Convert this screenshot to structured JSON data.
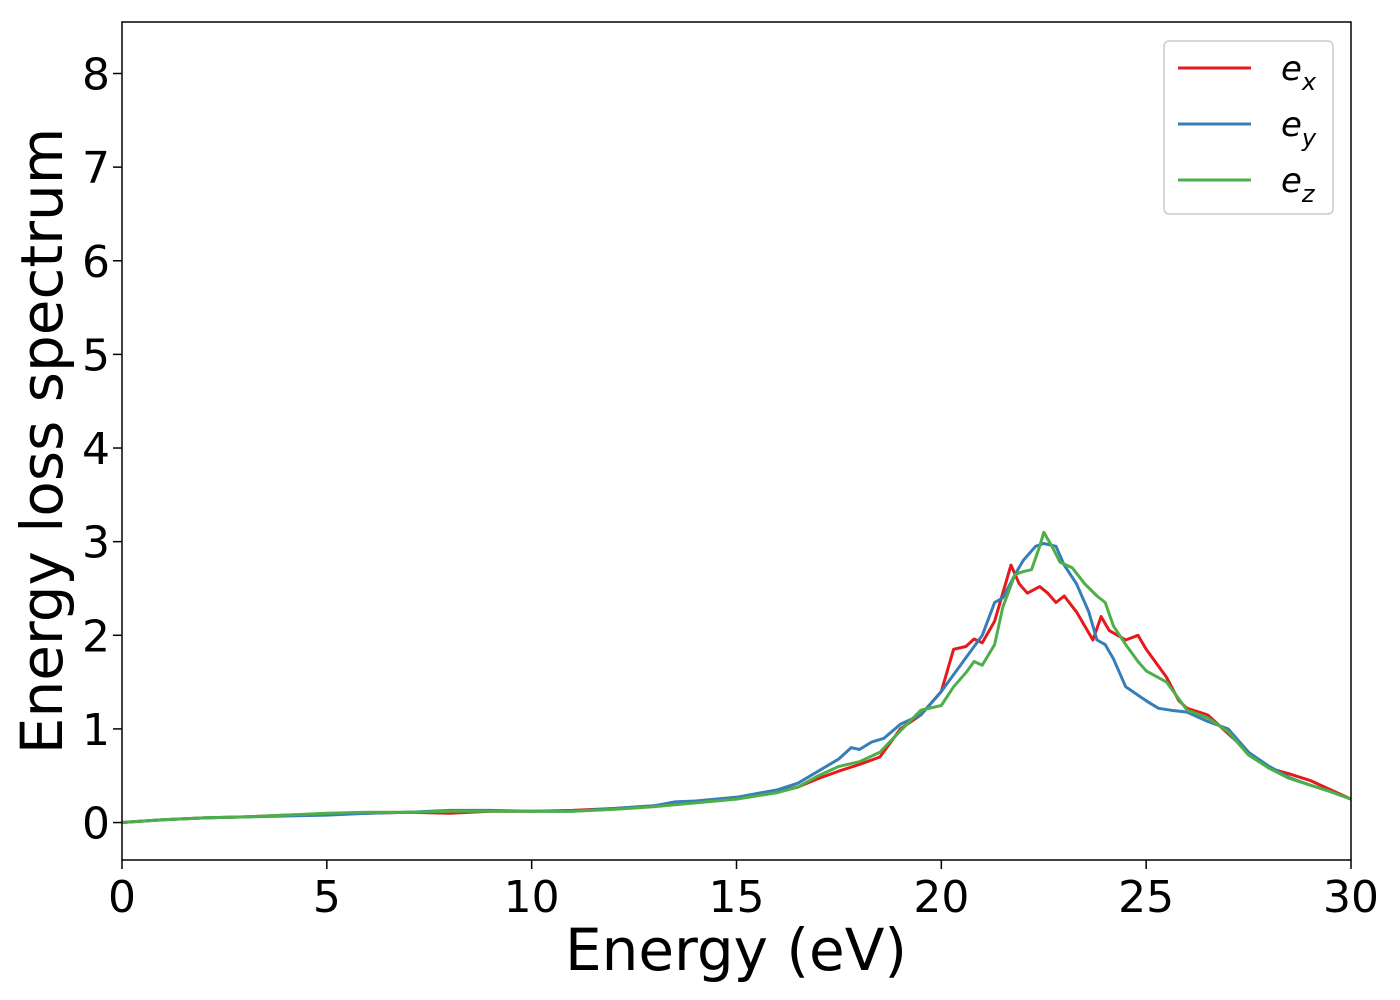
{
  "chart_data": {
    "type": "line",
    "title": "",
    "xlabel": "Energy (eV)",
    "ylabel": "Energy loss spectrum",
    "xlim": [
      0,
      30
    ],
    "ylim": [
      -0.4,
      8.55
    ],
    "xticks": [
      0,
      5,
      10,
      15,
      20,
      25,
      30
    ],
    "yticks": [
      0,
      1,
      2,
      3,
      4,
      5,
      6,
      7,
      8
    ],
    "grid": false,
    "legend_position": "top-right",
    "series": [
      {
        "name": "e_x",
        "label_base": "e",
        "label_sub": "x",
        "color": "#e41a1c",
        "points": [
          [
            0,
            0
          ],
          [
            1,
            0.03
          ],
          [
            2,
            0.05
          ],
          [
            3,
            0.06
          ],
          [
            4,
            0.08
          ],
          [
            5,
            0.09
          ],
          [
            6,
            0.1
          ],
          [
            7,
            0.11
          ],
          [
            8,
            0.1
          ],
          [
            9,
            0.12
          ],
          [
            10,
            0.12
          ],
          [
            11,
            0.13
          ],
          [
            12,
            0.15
          ],
          [
            13,
            0.18
          ],
          [
            14,
            0.22
          ],
          [
            15,
            0.27
          ],
          [
            16,
            0.33
          ],
          [
            16.5,
            0.38
          ],
          [
            17,
            0.47
          ],
          [
            17.5,
            0.55
          ],
          [
            18,
            0.62
          ],
          [
            18.5,
            0.7
          ],
          [
            19,
            1.0
          ],
          [
            19.5,
            1.15
          ],
          [
            20,
            1.4
          ],
          [
            20.3,
            1.85
          ],
          [
            20.6,
            1.88
          ],
          [
            20.8,
            1.96
          ],
          [
            21,
            1.92
          ],
          [
            21.3,
            2.15
          ],
          [
            21.5,
            2.45
          ],
          [
            21.7,
            2.75
          ],
          [
            21.9,
            2.55
          ],
          [
            22.1,
            2.45
          ],
          [
            22.4,
            2.52
          ],
          [
            22.6,
            2.45
          ],
          [
            22.8,
            2.35
          ],
          [
            23,
            2.42
          ],
          [
            23.3,
            2.25
          ],
          [
            23.5,
            2.1
          ],
          [
            23.7,
            1.95
          ],
          [
            23.9,
            2.2
          ],
          [
            24.1,
            2.05
          ],
          [
            24.3,
            2.0
          ],
          [
            24.5,
            1.95
          ],
          [
            24.8,
            2.0
          ],
          [
            25,
            1.85
          ],
          [
            25.5,
            1.55
          ],
          [
            25.8,
            1.3
          ],
          [
            26,
            1.22
          ],
          [
            26.5,
            1.15
          ],
          [
            27,
            0.95
          ],
          [
            27.5,
            0.75
          ],
          [
            28,
            0.58
          ],
          [
            28.5,
            0.52
          ],
          [
            29,
            0.45
          ],
          [
            29.5,
            0.35
          ],
          [
            30,
            0.25
          ]
        ]
      },
      {
        "name": "e_y",
        "label_base": "e",
        "label_sub": "y",
        "color": "#377eb8",
        "points": [
          [
            0,
            0
          ],
          [
            1,
            0.03
          ],
          [
            2,
            0.05
          ],
          [
            3,
            0.06
          ],
          [
            4,
            0.07
          ],
          [
            5,
            0.08
          ],
          [
            6,
            0.1
          ],
          [
            7,
            0.11
          ],
          [
            8,
            0.13
          ],
          [
            9,
            0.13
          ],
          [
            10,
            0.12
          ],
          [
            11,
            0.12
          ],
          [
            12,
            0.15
          ],
          [
            13,
            0.18
          ],
          [
            13.5,
            0.22
          ],
          [
            14,
            0.23
          ],
          [
            15,
            0.27
          ],
          [
            16,
            0.35
          ],
          [
            16.5,
            0.42
          ],
          [
            17,
            0.55
          ],
          [
            17.5,
            0.68
          ],
          [
            17.8,
            0.8
          ],
          [
            18,
            0.78
          ],
          [
            18.3,
            0.86
          ],
          [
            18.6,
            0.9
          ],
          [
            19,
            1.05
          ],
          [
            19.5,
            1.15
          ],
          [
            20,
            1.4
          ],
          [
            20.5,
            1.7
          ],
          [
            21,
            2.0
          ],
          [
            21.3,
            2.35
          ],
          [
            21.5,
            2.4
          ],
          [
            21.8,
            2.65
          ],
          [
            22,
            2.8
          ],
          [
            22.3,
            2.95
          ],
          [
            22.5,
            2.98
          ],
          [
            22.8,
            2.95
          ],
          [
            23,
            2.75
          ],
          [
            23.3,
            2.55
          ],
          [
            23.6,
            2.25
          ],
          [
            23.8,
            1.95
          ],
          [
            24,
            1.9
          ],
          [
            24.2,
            1.75
          ],
          [
            24.5,
            1.45
          ],
          [
            25,
            1.3
          ],
          [
            25.3,
            1.22
          ],
          [
            25.6,
            1.2
          ],
          [
            26,
            1.18
          ],
          [
            26.5,
            1.08
          ],
          [
            27,
            1.0
          ],
          [
            27.5,
            0.75
          ],
          [
            28,
            0.6
          ],
          [
            28.5,
            0.48
          ],
          [
            29,
            0.4
          ],
          [
            29.5,
            0.33
          ],
          [
            30,
            0.25
          ]
        ]
      },
      {
        "name": "e_z",
        "label_base": "e",
        "label_sub": "z",
        "color": "#4daf4a",
        "points": [
          [
            0,
            0
          ],
          [
            1,
            0.03
          ],
          [
            2,
            0.05
          ],
          [
            3,
            0.06
          ],
          [
            4,
            0.08
          ],
          [
            5,
            0.1
          ],
          [
            6,
            0.11
          ],
          [
            7,
            0.11
          ],
          [
            8,
            0.12
          ],
          [
            9,
            0.12
          ],
          [
            10,
            0.12
          ],
          [
            11,
            0.12
          ],
          [
            12,
            0.14
          ],
          [
            13,
            0.17
          ],
          [
            14,
            0.21
          ],
          [
            15,
            0.25
          ],
          [
            16,
            0.32
          ],
          [
            16.5,
            0.38
          ],
          [
            17,
            0.5
          ],
          [
            17.5,
            0.6
          ],
          [
            18,
            0.65
          ],
          [
            18.5,
            0.75
          ],
          [
            19,
            0.98
          ],
          [
            19.5,
            1.2
          ],
          [
            20,
            1.25
          ],
          [
            20.3,
            1.45
          ],
          [
            20.6,
            1.6
          ],
          [
            20.8,
            1.72
          ],
          [
            21,
            1.68
          ],
          [
            21.3,
            1.9
          ],
          [
            21.5,
            2.3
          ],
          [
            21.8,
            2.65
          ],
          [
            22,
            2.68
          ],
          [
            22.2,
            2.7
          ],
          [
            22.4,
            2.95
          ],
          [
            22.5,
            3.1
          ],
          [
            22.7,
            2.95
          ],
          [
            22.9,
            2.78
          ],
          [
            23.2,
            2.72
          ],
          [
            23.5,
            2.55
          ],
          [
            23.8,
            2.42
          ],
          [
            24,
            2.35
          ],
          [
            24.2,
            2.1
          ],
          [
            24.5,
            1.9
          ],
          [
            24.8,
            1.72
          ],
          [
            25,
            1.62
          ],
          [
            25.5,
            1.5
          ],
          [
            26,
            1.2
          ],
          [
            26.5,
            1.12
          ],
          [
            27,
            0.97
          ],
          [
            27.5,
            0.72
          ],
          [
            28,
            0.58
          ],
          [
            28.5,
            0.47
          ],
          [
            29,
            0.4
          ],
          [
            29.5,
            0.33
          ],
          [
            30,
            0.25
          ]
        ]
      }
    ]
  }
}
